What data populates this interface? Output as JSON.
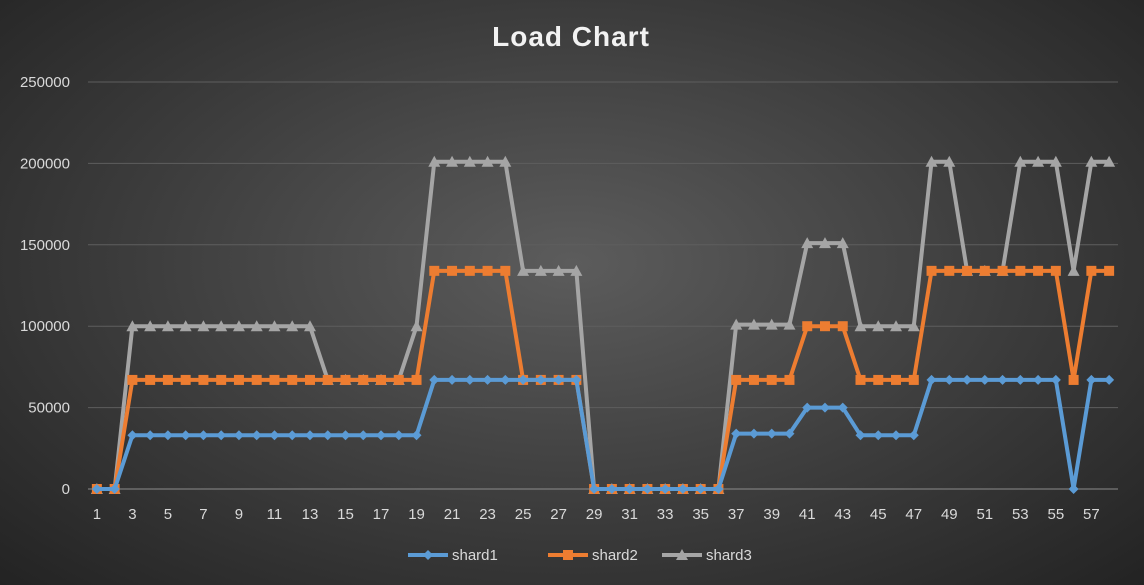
{
  "chart_data": {
    "type": "line",
    "title": "Load Chart",
    "xlabel": "",
    "ylabel": "",
    "x": [
      1,
      2,
      3,
      4,
      5,
      6,
      7,
      8,
      9,
      10,
      11,
      12,
      13,
      14,
      15,
      16,
      17,
      18,
      19,
      20,
      21,
      22,
      23,
      24,
      25,
      26,
      27,
      28,
      29,
      30,
      31,
      32,
      33,
      34,
      35,
      36,
      37,
      38,
      39,
      40,
      41,
      42,
      43,
      44,
      45,
      46,
      47,
      48,
      49,
      50,
      51,
      52,
      53,
      54,
      55,
      56,
      57,
      58
    ],
    "x_tick_labels": [
      "1",
      "3",
      "5",
      "7",
      "9",
      "11",
      "13",
      "15",
      "17",
      "19",
      "21",
      "23",
      "25",
      "27",
      "29",
      "31",
      "33",
      "35",
      "37",
      "39",
      "41",
      "43",
      "45",
      "47",
      "49",
      "51",
      "53",
      "55",
      "57"
    ],
    "ylim": [
      0,
      250000
    ],
    "y_ticks": [
      "0",
      "50000",
      "100000",
      "150000",
      "200000",
      "250000"
    ],
    "grid": "horizontal",
    "legend": "bottom",
    "series": [
      {
        "name": "shard1",
        "color": "#5b9bd5",
        "marker": "diamond",
        "values": [
          0,
          0,
          33000,
          33000,
          33000,
          33000,
          33000,
          33000,
          33000,
          33000,
          33000,
          33000,
          33000,
          33000,
          33000,
          33000,
          33000,
          33000,
          33000,
          67000,
          67000,
          67000,
          67000,
          67000,
          67000,
          67000,
          67000,
          67000,
          0,
          0,
          0,
          0,
          0,
          0,
          0,
          0,
          34000,
          34000,
          34000,
          34000,
          50000,
          50000,
          50000,
          33000,
          33000,
          33000,
          33000,
          67000,
          67000,
          67000,
          67000,
          67000,
          67000,
          67000,
          67000,
          0,
          67000,
          67000
        ]
      },
      {
        "name": "shard2",
        "color": "#ed7d31",
        "marker": "square",
        "values": [
          0,
          0,
          67000,
          67000,
          67000,
          67000,
          67000,
          67000,
          67000,
          67000,
          67000,
          67000,
          67000,
          67000,
          67000,
          67000,
          67000,
          67000,
          67000,
          134000,
          134000,
          134000,
          134000,
          134000,
          67000,
          67000,
          67000,
          67000,
          0,
          0,
          0,
          0,
          0,
          0,
          0,
          0,
          67000,
          67000,
          67000,
          67000,
          100000,
          100000,
          100000,
          67000,
          67000,
          67000,
          67000,
          134000,
          134000,
          134000,
          134000,
          134000,
          134000,
          134000,
          134000,
          67000,
          134000,
          134000
        ]
      },
      {
        "name": "shard3",
        "color": "#a5a5a5",
        "marker": "triangle",
        "values": [
          0,
          0,
          100000,
          100000,
          100000,
          100000,
          100000,
          100000,
          100000,
          100000,
          100000,
          100000,
          100000,
          67000,
          67000,
          67000,
          67000,
          67000,
          100000,
          201000,
          201000,
          201000,
          201000,
          201000,
          134000,
          134000,
          134000,
          134000,
          0,
          0,
          0,
          0,
          0,
          0,
          0,
          0,
          101000,
          101000,
          101000,
          101000,
          151000,
          151000,
          151000,
          100000,
          100000,
          100000,
          100000,
          201000,
          201000,
          134000,
          134000,
          134000,
          201000,
          201000,
          201000,
          134000,
          201000,
          201000
        ]
      }
    ]
  }
}
